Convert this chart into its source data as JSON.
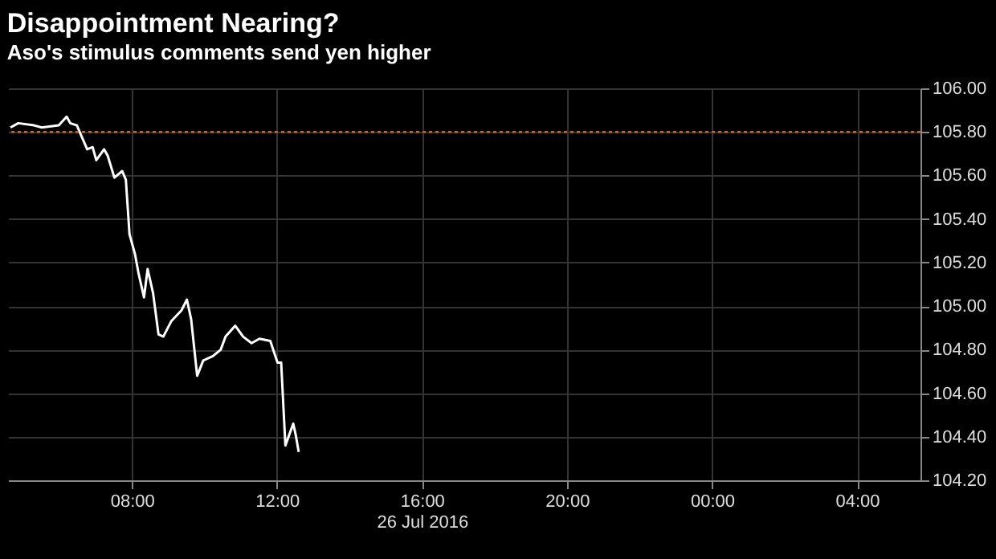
{
  "chart_data": {
    "type": "line",
    "title": "Disappointment Nearing?",
    "subtitle": "Aso's stimulus comments send yen higher",
    "x": [
      "2016-07-26T04:39",
      "2016-07-26T04:52",
      "2016-07-26T05:18",
      "2016-07-26T05:31",
      "2016-07-26T05:59",
      "2016-07-26T06:12",
      "2016-07-26T06:18",
      "2016-07-26T06:29",
      "2016-07-26T06:35",
      "2016-07-26T06:46",
      "2016-07-26T06:55",
      "2016-07-26T07:01",
      "2016-07-26T07:14",
      "2016-07-26T07:20",
      "2016-07-26T07:31",
      "2016-07-26T07:44",
      "2016-07-26T07:50",
      "2016-07-26T07:56",
      "2016-07-26T08:05",
      "2016-07-26T08:11",
      "2016-07-26T08:20",
      "2016-07-26T08:26",
      "2016-07-26T08:35",
      "2016-07-26T08:44",
      "2016-07-26T08:52",
      "2016-07-26T09:05",
      "2016-07-26T09:22",
      "2016-07-26T09:31",
      "2016-07-26T09:38",
      "2016-07-26T09:48",
      "2016-07-26T09:58",
      "2016-07-26T10:14",
      "2016-07-26T10:27",
      "2016-07-26T10:35",
      "2016-07-26T10:51",
      "2016-07-26T11:04",
      "2016-07-26T11:18",
      "2016-07-26T11:31",
      "2016-07-26T11:49",
      "2016-07-26T12:01",
      "2016-07-26T12:07",
      "2016-07-26T12:14",
      "2016-07-26T12:27",
      "2016-07-26T12:31",
      "2016-07-26T12:36"
    ],
    "series": [
      {
        "color": "#ffffff",
        "values": [
          105.82,
          105.84,
          105.83,
          105.82,
          105.83,
          105.87,
          105.84,
          105.83,
          105.79,
          105.72,
          105.73,
          105.67,
          105.72,
          105.69,
          105.59,
          105.62,
          105.58,
          105.33,
          105.24,
          105.15,
          105.04,
          105.17,
          105.06,
          104.87,
          104.86,
          104.93,
          104.98,
          105.03,
          104.94,
          104.68,
          104.75,
          104.77,
          104.8,
          104.86,
          104.91,
          104.86,
          104.83,
          104.85,
          104.84,
          104.74,
          104.74,
          104.36,
          104.46,
          104.41,
          104.33
        ]
      }
    ],
    "xlim": [
      "2016-07-26T04:35",
      "2016-07-27T05:45"
    ],
    "xticks": [
      {
        "value": "2016-07-26T08:00",
        "label": "08:00"
      },
      {
        "value": "2016-07-26T12:00",
        "label": "12:00"
      },
      {
        "value": "2016-07-26T16:00",
        "label": "16:00\n26 Jul 2016"
      },
      {
        "value": "2016-07-26T20:00",
        "label": "20:00"
      },
      {
        "value": "2016-07-27T00:00",
        "label": "00:00"
      },
      {
        "value": "2016-07-27T04:00",
        "label": "04:00"
      }
    ],
    "ylim": [
      104.2,
      106
    ],
    "yticks": [
      {
        "value": 104.2,
        "label": "104.20"
      },
      {
        "value": 104.4,
        "label": "104.40"
      },
      {
        "value": 104.6,
        "label": "104.60"
      },
      {
        "value": 104.8,
        "label": "104.80"
      },
      {
        "value": 105,
        "label": "105.00"
      },
      {
        "value": 105.2,
        "label": "105.20"
      },
      {
        "value": 105.4,
        "label": "105.40"
      },
      {
        "value": 105.6,
        "label": "105.60"
      },
      {
        "value": 105.8,
        "label": "105.80"
      },
      {
        "value": 106,
        "label": "106.00"
      }
    ],
    "ref_lines": [
      {
        "axis": "y",
        "value": 105.8,
        "color": "#c8641e",
        "line_style": "dotted"
      }
    ],
    "grid": true
  }
}
